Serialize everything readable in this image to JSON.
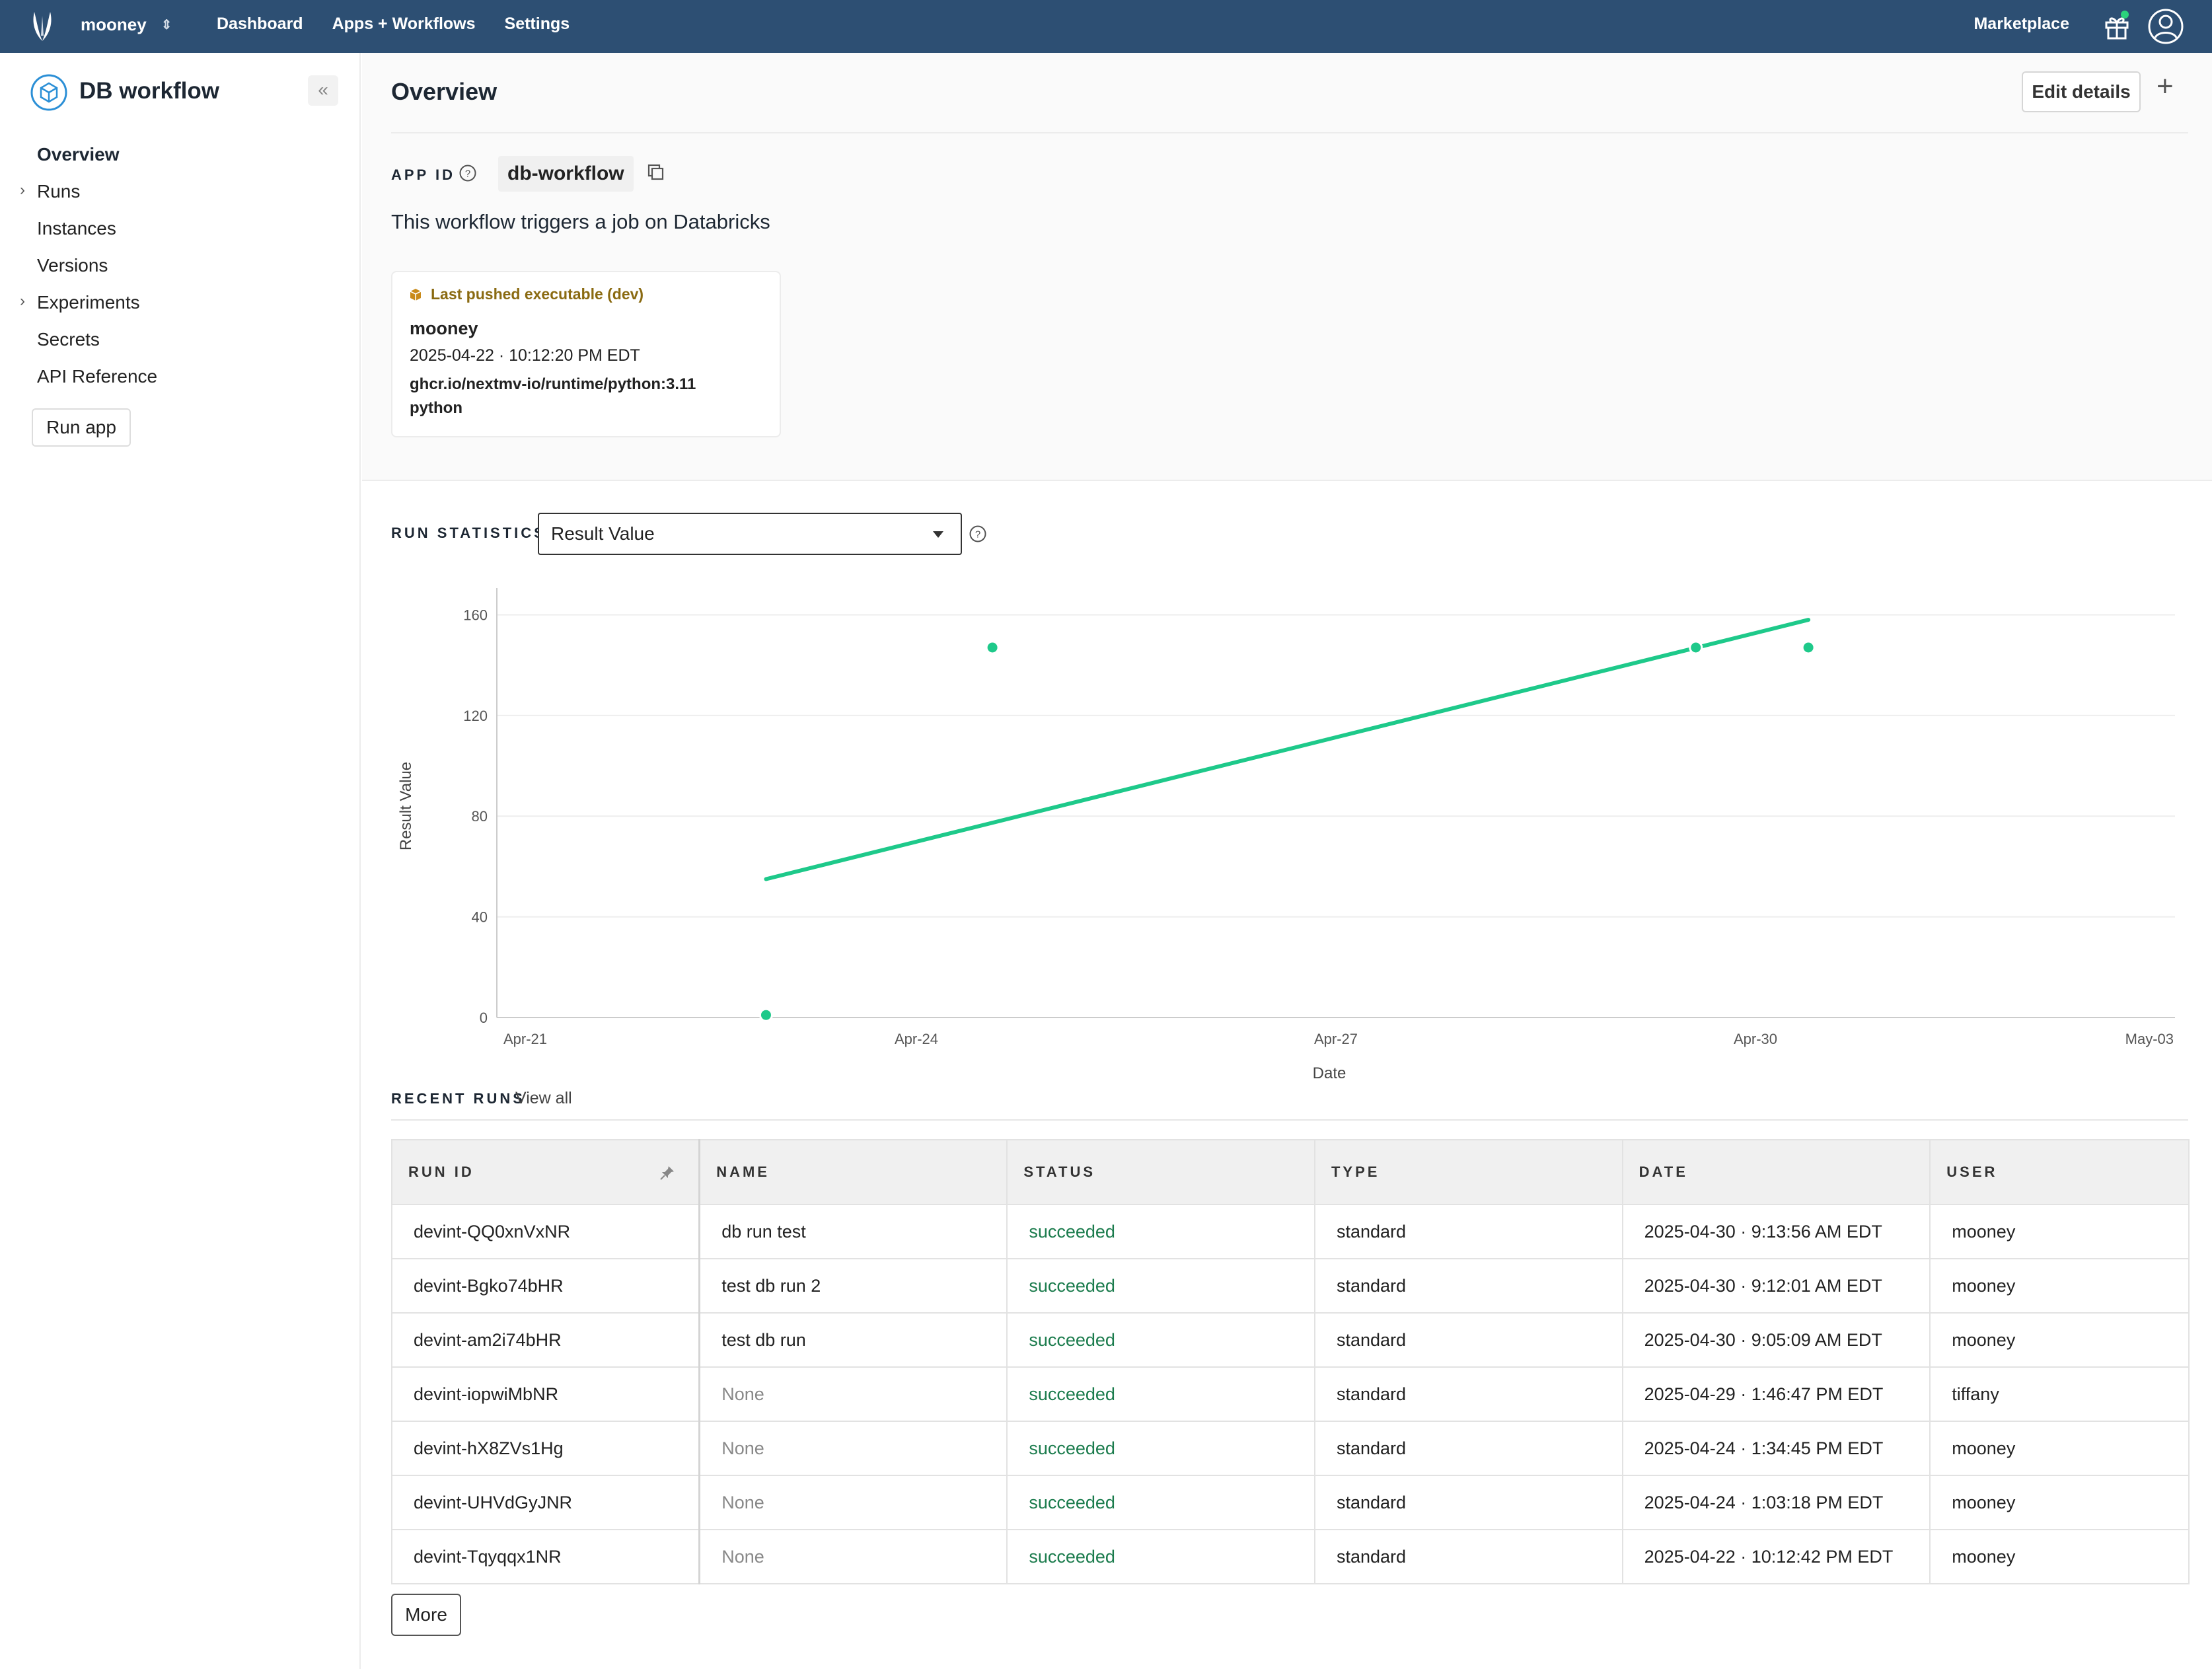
{
  "topbar": {
    "org": "mooney",
    "nav": [
      "Dashboard",
      "Apps + Workflows",
      "Settings"
    ],
    "marketplace": "Marketplace"
  },
  "sidebar": {
    "app_title": "DB workflow",
    "items": [
      {
        "label": "Overview",
        "active": true,
        "expandable": false
      },
      {
        "label": "Runs",
        "active": false,
        "expandable": true
      },
      {
        "label": "Instances",
        "active": false,
        "expandable": false
      },
      {
        "label": "Versions",
        "active": false,
        "expandable": false
      },
      {
        "label": "Experiments",
        "active": false,
        "expandable": true
      },
      {
        "label": "Secrets",
        "active": false,
        "expandable": false
      },
      {
        "label": "API Reference",
        "active": false,
        "expandable": false
      }
    ],
    "run_app_label": "Run app"
  },
  "header": {
    "title": "Overview",
    "edit_label": "Edit details"
  },
  "app_id": {
    "label": "APP ID",
    "value": "db-workflow"
  },
  "description": "This workflow triggers a job on Databricks",
  "executable": {
    "heading": "Last pushed executable (dev)",
    "user": "mooney",
    "date": "2025-04-22 · 10:12:20 PM EDT",
    "image": "ghcr.io/nextmv-io/runtime/python:3.11",
    "language": "python"
  },
  "run_statistics": {
    "label": "RUN STATISTICS",
    "selected": "Result Value"
  },
  "chart_data": {
    "type": "scatter",
    "xlabel": "Date",
    "ylabel": "Result Value",
    "x_ticks": [
      "Apr-21",
      "Apr-24",
      "Apr-27",
      "Apr-30",
      "May-03"
    ],
    "y_ticks": [
      0,
      40,
      80,
      120,
      160
    ],
    "ylim": [
      0,
      168
    ],
    "xlim_days": [
      "2025-04-21",
      "2025-05-03"
    ],
    "grid": true,
    "color": "#1ec98a",
    "points": [
      {
        "x": "2025-04-22T22:12",
        "y": 1
      },
      {
        "x": "2025-04-24T13:03",
        "y": 147
      },
      {
        "x": "2025-04-29T13:46",
        "y": 147
      },
      {
        "x": "2025-04-30T09:05",
        "y": 147
      }
    ],
    "trend_line": [
      {
        "x": "2025-04-22T22:12",
        "y": 55
      },
      {
        "x": "2025-04-30T09:05",
        "y": 158
      }
    ]
  },
  "recent_runs": {
    "label": "RECENT RUNS",
    "view_all": "View all",
    "columns": [
      "RUN ID",
      "NAME",
      "STATUS",
      "TYPE",
      "DATE",
      "USER"
    ],
    "rows": [
      [
        "devint-QQ0xnVxNR",
        "db run test",
        "succeeded",
        "standard",
        "2025-04-30 · 9:13:56 AM EDT",
        "mooney"
      ],
      [
        "devint-Bgko74bHR",
        "test db run 2",
        "succeeded",
        "standard",
        "2025-04-30 · 9:12:01 AM EDT",
        "mooney"
      ],
      [
        "devint-am2i74bHR",
        "test db run",
        "succeeded",
        "standard",
        "2025-04-30 · 9:05:09 AM EDT",
        "mooney"
      ],
      [
        "devint-iopwiMbNR",
        "None",
        "succeeded",
        "standard",
        "2025-04-29 · 1:46:47 PM EDT",
        "tiffany"
      ],
      [
        "devint-hX8ZVs1Hg",
        "None",
        "succeeded",
        "standard",
        "2025-04-24 · 1:34:45 PM EDT",
        "mooney"
      ],
      [
        "devint-UHVdGyJNR",
        "None",
        "succeeded",
        "standard",
        "2025-04-24 · 1:03:18 PM EDT",
        "mooney"
      ],
      [
        "devint-Tqyqqx1NR",
        "None",
        "succeeded",
        "standard",
        "2025-04-22 · 10:12:42 PM EDT",
        "mooney"
      ]
    ],
    "more_label": "More"
  }
}
